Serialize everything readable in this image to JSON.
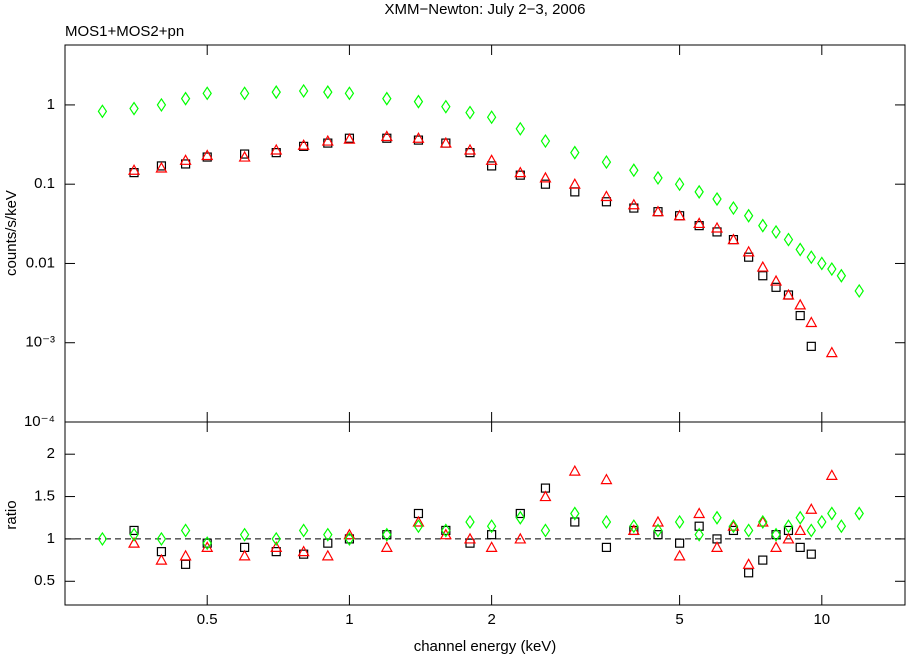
{
  "chart_data": [
    {
      "type": "scatter",
      "title": "XMM−Newton: July 2−3, 2006",
      "subtitle": "MOS1+MOS2+pn",
      "y_label": "counts/s/keV",
      "xscale": "log",
      "yscale": "log",
      "xlim": [
        0.25,
        15
      ],
      "ylim": [
        0.0001,
        5.7
      ],
      "xticks": [
        0.5,
        1,
        2,
        5,
        10
      ],
      "yticks": [
        {
          "value": 0.0001,
          "label": "10⁻⁴"
        },
        {
          "value": 0.001,
          "label": "10⁻³"
        },
        0.01,
        0.1,
        1
      ],
      "x": [
        0.3,
        0.35,
        0.4,
        0.45,
        0.5,
        0.6,
        0.7,
        0.8,
        0.9,
        1,
        1.2,
        1.4,
        1.6,
        1.8,
        2,
        2.3,
        2.6,
        3,
        3.5,
        4,
        4.5,
        5,
        5.5,
        6,
        6.5,
        7,
        7.5,
        8,
        8.5,
        9,
        9.5,
        10,
        10.5,
        11,
        12
      ],
      "series": [
        {
          "color": "#000000",
          "marker": "square",
          "values": [
            null,
            0.14,
            0.17,
            0.18,
            0.22,
            0.24,
            0.25,
            0.3,
            0.33,
            0.38,
            0.38,
            0.36,
            0.33,
            0.25,
            0.17,
            0.13,
            0.1,
            0.08,
            0.06,
            0.05,
            0.045,
            0.04,
            0.03,
            0.025,
            0.02,
            0.012,
            0.007,
            0.005,
            0.004,
            0.0022,
            0.0009,
            null,
            null,
            null,
            null
          ]
        },
        {
          "color": "#ff0000",
          "marker": "triangle",
          "values": [
            null,
            0.15,
            0.16,
            0.2,
            0.23,
            0.22,
            0.27,
            0.31,
            0.35,
            0.37,
            0.4,
            0.38,
            0.33,
            0.27,
            0.2,
            0.14,
            0.12,
            0.1,
            0.07,
            0.055,
            0.045,
            0.04,
            0.032,
            0.028,
            0.02,
            0.014,
            0.009,
            0.006,
            0.004,
            0.003,
            0.0018,
            null,
            0.00075,
            null,
            null
          ]
        },
        {
          "color": "#00ff00",
          "marker": "diamond",
          "values": [
            0.83,
            0.9,
            1.0,
            1.2,
            1.4,
            1.4,
            1.45,
            1.5,
            1.45,
            1.4,
            1.2,
            1.1,
            0.95,
            0.8,
            0.7,
            0.5,
            0.35,
            0.25,
            0.19,
            0.15,
            0.12,
            0.1,
            0.08,
            0.065,
            0.05,
            0.04,
            0.03,
            0.025,
            0.02,
            0.015,
            0.012,
            0.01,
            0.0085,
            0.007,
            0.0045
          ]
        }
      ]
    },
    {
      "type": "scatter",
      "x_label": "channel energy (keV)",
      "y_label": "ratio",
      "xscale": "log",
      "yscale": "linear",
      "xlim": [
        0.25,
        15
      ],
      "ylim": [
        0.22,
        2.38
      ],
      "xticks": [
        0.5,
        1,
        2,
        5,
        10
      ],
      "yticks": [
        0.5,
        1,
        1.5,
        2
      ],
      "reference_line": 1,
      "x": [
        0.3,
        0.35,
        0.4,
        0.45,
        0.5,
        0.6,
        0.7,
        0.8,
        0.9,
        1,
        1.2,
        1.4,
        1.6,
        1.8,
        2,
        2.3,
        2.6,
        3,
        3.5,
        4,
        4.5,
        5,
        5.5,
        6,
        6.5,
        7,
        7.5,
        8,
        8.5,
        9,
        9.5,
        10,
        10.5,
        11,
        12
      ],
      "series": [
        {
          "color": "#000000",
          "marker": "square",
          "values": [
            null,
            1.1,
            0.85,
            0.7,
            0.95,
            0.9,
            0.85,
            0.82,
            0.95,
            1.0,
            1.05,
            1.3,
            1.1,
            0.95,
            1.05,
            1.3,
            1.6,
            1.2,
            0.9,
            1.1,
            1.05,
            0.95,
            1.15,
            1.0,
            1.1,
            0.6,
            0.75,
            1.05,
            1.1,
            0.9,
            0.82,
            null,
            null,
            null,
            null
          ]
        },
        {
          "color": "#ff0000",
          "marker": "triangle",
          "values": [
            null,
            0.95,
            0.75,
            0.8,
            0.9,
            0.8,
            0.9,
            0.85,
            0.8,
            1.05,
            0.9,
            1.2,
            1.05,
            1.0,
            0.9,
            1.0,
            1.5,
            1.8,
            1.7,
            1.1,
            1.2,
            0.8,
            1.3,
            0.9,
            1.15,
            0.7,
            1.2,
            0.9,
            1.0,
            1.1,
            1.35,
            null,
            1.75,
            null,
            null
          ]
        },
        {
          "color": "#00ff00",
          "marker": "diamond",
          "values": [
            1.0,
            1.05,
            1.0,
            1.1,
            0.95,
            1.05,
            1.0,
            1.1,
            1.05,
            1.0,
            1.05,
            1.15,
            1.1,
            1.2,
            1.15,
            1.25,
            1.1,
            1.3,
            1.2,
            1.15,
            1.1,
            1.2,
            1.05,
            1.25,
            1.15,
            1.1,
            1.2,
            1.05,
            1.15,
            1.25,
            1.1,
            1.2,
            1.3,
            1.15,
            1.3
          ]
        }
      ]
    }
  ]
}
